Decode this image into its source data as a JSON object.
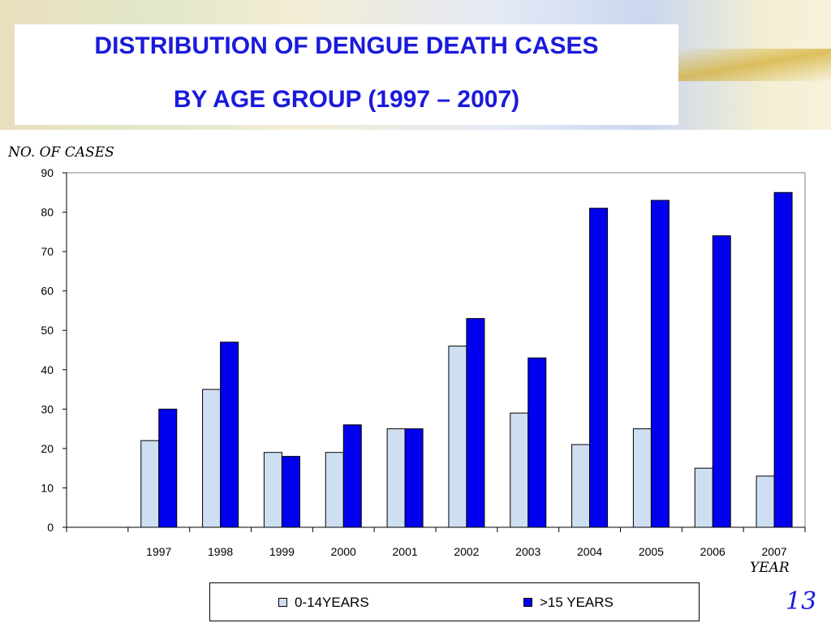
{
  "slide": {
    "title_line_1": "DISTRIBUTION OF DENGUE DEATH CASES",
    "title_line_2": "BY AGE GROUP (1997 – 2007)",
    "page_number": "13"
  },
  "chart_data": {
    "type": "bar",
    "title": "DISTRIBUTION OF DENGUE DEATH CASES BY AGE GROUP (1997 – 2007)",
    "ylabel": "NO. OF CASES",
    "xlabel": "YEAR",
    "categories": [
      "1997",
      "1998",
      "1999",
      "2000",
      "2001",
      "2002",
      "2003",
      "2004",
      "2005",
      "2006",
      "2007"
    ],
    "series": [
      {
        "name": "0-14YEARS",
        "color": "#cfdff2",
        "values": [
          22,
          35,
          19,
          19,
          25,
          46,
          29,
          21,
          25,
          15,
          13
        ]
      },
      {
        "name": ">15 YEARS",
        "color": "#0000ee",
        "values": [
          30,
          47,
          18,
          26,
          25,
          53,
          43,
          81,
          83,
          74,
          85
        ]
      }
    ],
    "ylim": [
      0,
      90
    ],
    "yticks": [
      0,
      10,
      20,
      30,
      40,
      50,
      60,
      70,
      80,
      90
    ],
    "grid": false,
    "legend": "bottom"
  }
}
